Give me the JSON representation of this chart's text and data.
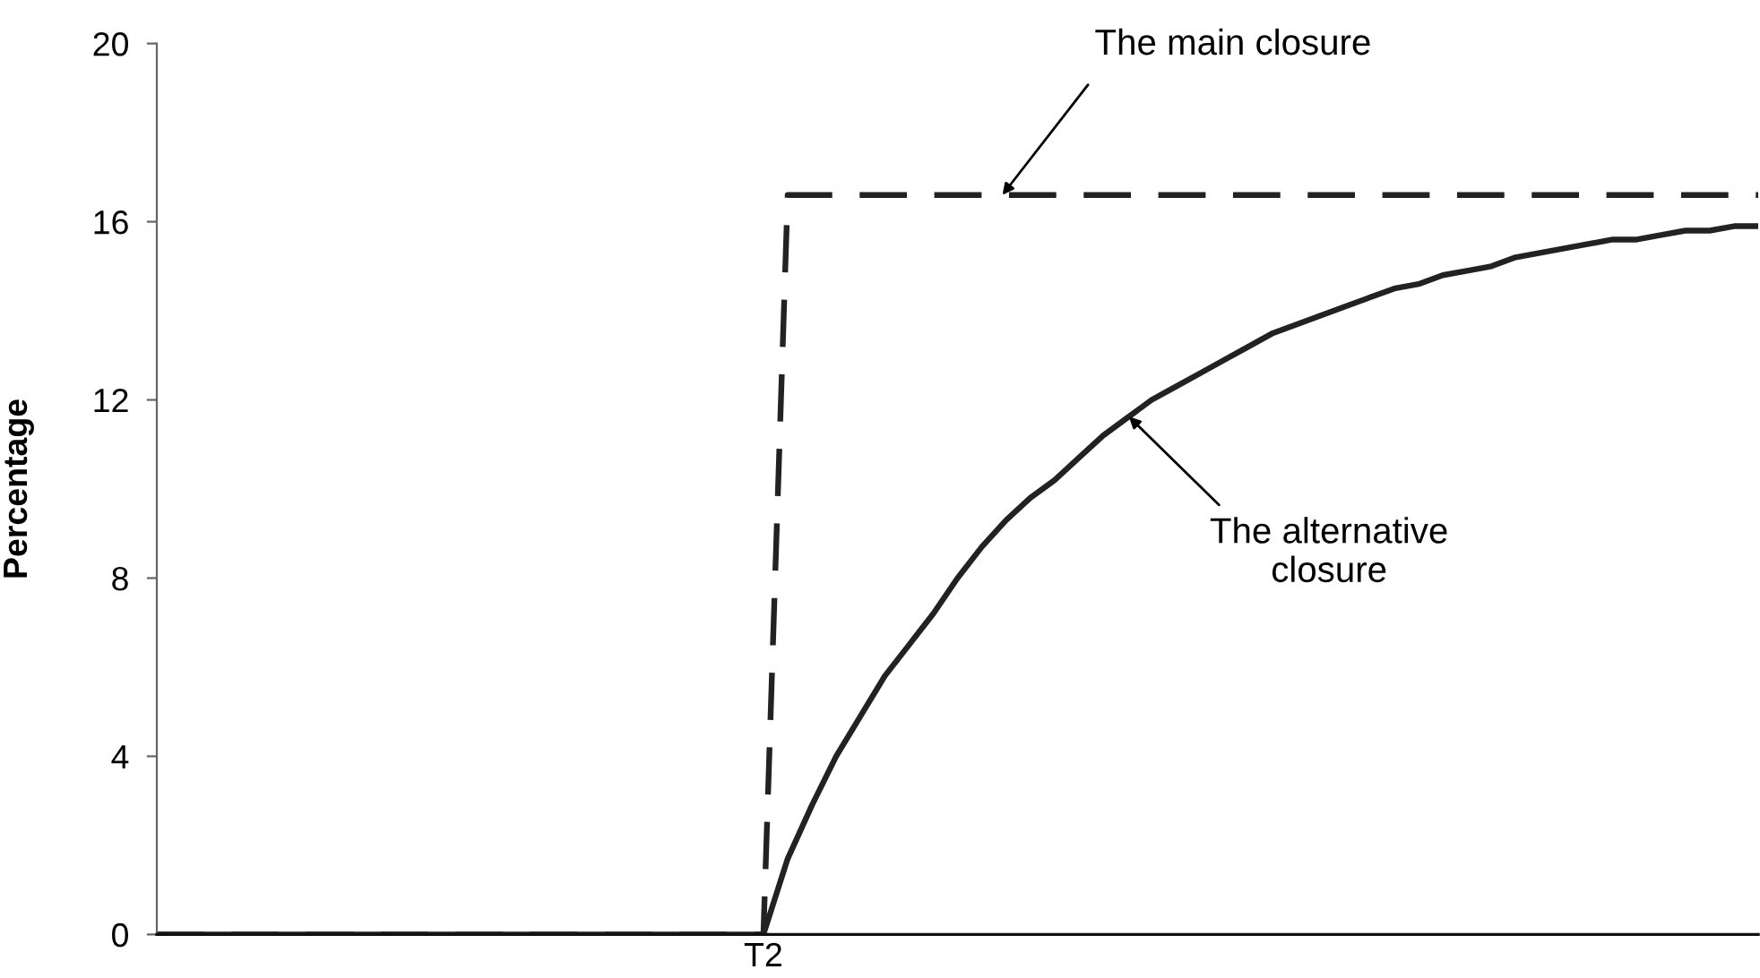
{
  "chart_data": {
    "type": "line",
    "ylabel": "Percentage",
    "categories": [
      null,
      null,
      null,
      null,
      null,
      null,
      null,
      null,
      null,
      null,
      null,
      null,
      null,
      null,
      null,
      null,
      null,
      null,
      null,
      null,
      null,
      null,
      null,
      null,
      null,
      "T2",
      null,
      null,
      null,
      null,
      null,
      null,
      null,
      null,
      null,
      null,
      null,
      null,
      null,
      null,
      null,
      null,
      null,
      null,
      null,
      null,
      null,
      null,
      null,
      null,
      null,
      null,
      null,
      null,
      null,
      null,
      null,
      null,
      null,
      null,
      null,
      null,
      null,
      null,
      null,
      null,
      null
    ],
    "ylim": [
      0,
      20
    ],
    "yticks": [
      0,
      4,
      8,
      12,
      16,
      20
    ],
    "series": [
      {
        "color": "#222222",
        "line_style": "dashed",
        "values": [
          0,
          0,
          0,
          0,
          0,
          0,
          0,
          0,
          0,
          0,
          0,
          0,
          0,
          0,
          0,
          0,
          0,
          0,
          0,
          0,
          0,
          0,
          0,
          0,
          0,
          0,
          16.6,
          16.6,
          16.6,
          16.6,
          16.6,
          16.6,
          16.6,
          16.6,
          16.6,
          16.6,
          16.6,
          16.6,
          16.6,
          16.6,
          16.6,
          16.6,
          16.6,
          16.6,
          16.6,
          16.6,
          16.6,
          16.6,
          16.6,
          16.6,
          16.6,
          16.6,
          16.6,
          16.6,
          16.6,
          16.6,
          16.6,
          16.6,
          16.6,
          16.6,
          16.6,
          16.6,
          16.6,
          16.6,
          16.6,
          16.6,
          16.6
        ]
      },
      {
        "color": "#222222",
        "line_style": "solid",
        "values": [
          0,
          0,
          0,
          0,
          0,
          0,
          0,
          0,
          0,
          0,
          0,
          0,
          0,
          0,
          0,
          0,
          0,
          0,
          0,
          0,
          0,
          0,
          0,
          0,
          0,
          0,
          1.7,
          2.9,
          4.0,
          4.9,
          5.8,
          6.5,
          7.2,
          8.0,
          8.7,
          9.3,
          9.8,
          10.2,
          10.7,
          11.2,
          11.6,
          12.0,
          12.3,
          12.6,
          12.9,
          13.2,
          13.5,
          13.7,
          13.9,
          14.1,
          14.3,
          14.5,
          14.6,
          14.8,
          14.9,
          15.0,
          15.2,
          15.3,
          15.4,
          15.5,
          15.6,
          15.6,
          15.7,
          15.8,
          15.8,
          15.9,
          15.9
        ]
      }
    ],
    "annotations": [
      "The main closure",
      "The alternative\nclosure"
    ]
  }
}
